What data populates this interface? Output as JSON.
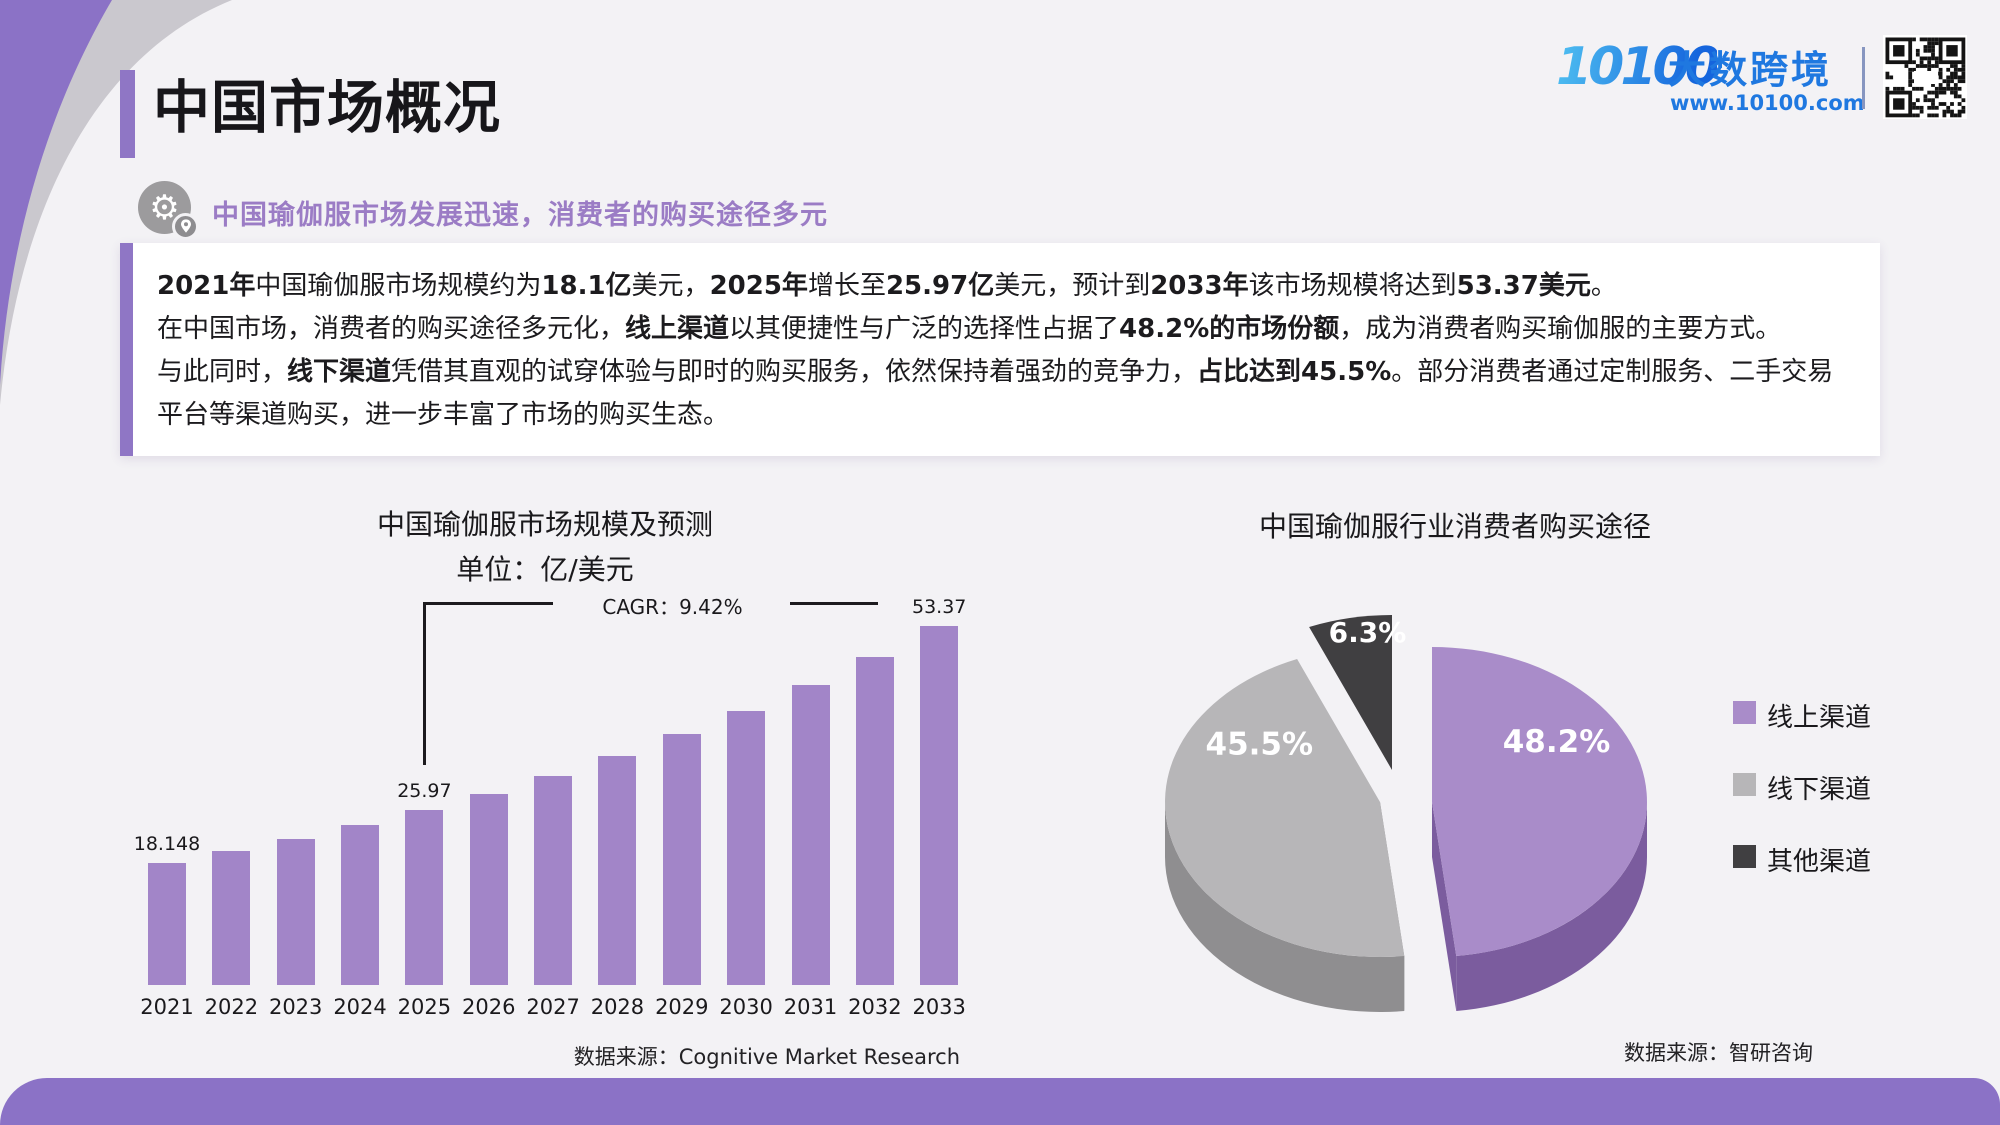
{
  "page": {
    "title": "中国市场概况",
    "subtitle": "中国瑜伽服市场发展迅速，消费者的购买途径多元"
  },
  "logo": {
    "mark": "10100",
    "name": "大数跨境",
    "url": "www.10100.com"
  },
  "summary": {
    "paragraphs": [
      [
        {
          "t": "2021年",
          "b": 1
        },
        {
          "t": "中国瑜伽服市场规模约为"
        },
        {
          "t": "18.1亿",
          "b": 1
        },
        {
          "t": "美元，"
        },
        {
          "t": "2025年",
          "b": 1
        },
        {
          "t": "增长至"
        },
        {
          "t": "25.97亿",
          "b": 1
        },
        {
          "t": "美元，预计到"
        },
        {
          "t": "2033年",
          "b": 1
        },
        {
          "t": "该市场规模将达到"
        },
        {
          "t": "53.37美元",
          "b": 1
        },
        {
          "t": "。"
        }
      ],
      [
        {
          "t": "在中国市场，消费者的购买途径多元化，"
        },
        {
          "t": "线上渠道",
          "b": 1
        },
        {
          "t": "以其便捷性与广泛的选择性占据了"
        },
        {
          "t": "48.2%的市场份额",
          "b": 1
        },
        {
          "t": "，成为消费者购买瑜伽服的主要方式。"
        }
      ],
      [
        {
          "t": "与此同时，"
        },
        {
          "t": "线下渠道",
          "b": 1
        },
        {
          "t": "凭借其直观的试穿体验与即时的购买服务，依然保持着强劲的竞争力，"
        },
        {
          "t": "占比达到45.5%",
          "b": 1
        },
        {
          "t": "。部分消费者通过定制服务、二手交易平台等渠道购买，进一步丰富了市场的购买生态。"
        }
      ]
    ]
  },
  "chart_data": [
    {
      "type": "bar",
      "title": "中国瑜伽服市场规模及预测",
      "subtitle": "单位：亿/美元",
      "categories": [
        "2021",
        "2022",
        "2023",
        "2024",
        "2025",
        "2026",
        "2027",
        "2028",
        "2029",
        "2030",
        "2031",
        "2032",
        "2033"
      ],
      "values": [
        18.148,
        19.85,
        21.72,
        23.76,
        25.97,
        28.42,
        31.09,
        34.02,
        37.23,
        40.73,
        44.57,
        48.77,
        53.37
      ],
      "labeled_values": {
        "2021": "18.148",
        "2025": "25.97",
        "2033": "53.37"
      },
      "annotation": "CAGR：9.42%",
      "bar_color": "#a285c8",
      "ylim": [
        0,
        60
      ],
      "grid": false,
      "source": "数据来源：Cognitive Market Research"
    },
    {
      "type": "pie",
      "title": "中国瑜伽服行业消费者购买途径",
      "slices": [
        {
          "label": "线上渠道",
          "value": 48.2,
          "display": "48.2%",
          "color": "#a98cc9",
          "side_color": "#7b5c9e"
        },
        {
          "label": "线下渠道",
          "value": 45.5,
          "display": "45.5%",
          "color": "#b7b6b8",
          "side_color": "#8f8e90"
        },
        {
          "label": "其他渠道",
          "value": 6.3,
          "display": "6.3%",
          "color": "#403f41",
          "side_color": "#232225"
        }
      ],
      "legend_position": "right",
      "source": "数据来源：智研咨询"
    }
  ],
  "colors": {
    "accent_purple": "#8f76c5",
    "footer_purple": "#8b72c6",
    "bar_purple": "#a285c8",
    "logo_blue": "#1f78e0",
    "background": "#f3f2f5"
  }
}
